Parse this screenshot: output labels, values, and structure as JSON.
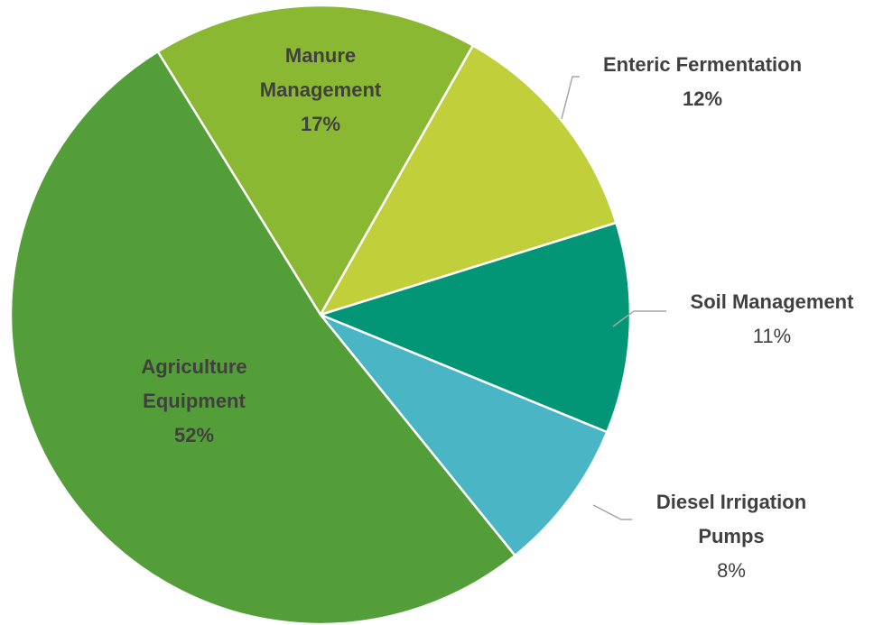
{
  "chart_data": {
    "type": "pie",
    "categories": [
      "Manure Management",
      "Enteric Fermentation",
      "Soil Management",
      "Diesel Irrigation Pumps",
      "Agriculture Equipment"
    ],
    "values": [
      17,
      12,
      11,
      8,
      52
    ],
    "value_labels": [
      "17%",
      "12%",
      "11%",
      "8%",
      "52%"
    ],
    "colors": [
      "#8ab833",
      "#c0cf3a",
      "#029676",
      "#4ab5c4",
      "#549e39"
    ]
  }
}
